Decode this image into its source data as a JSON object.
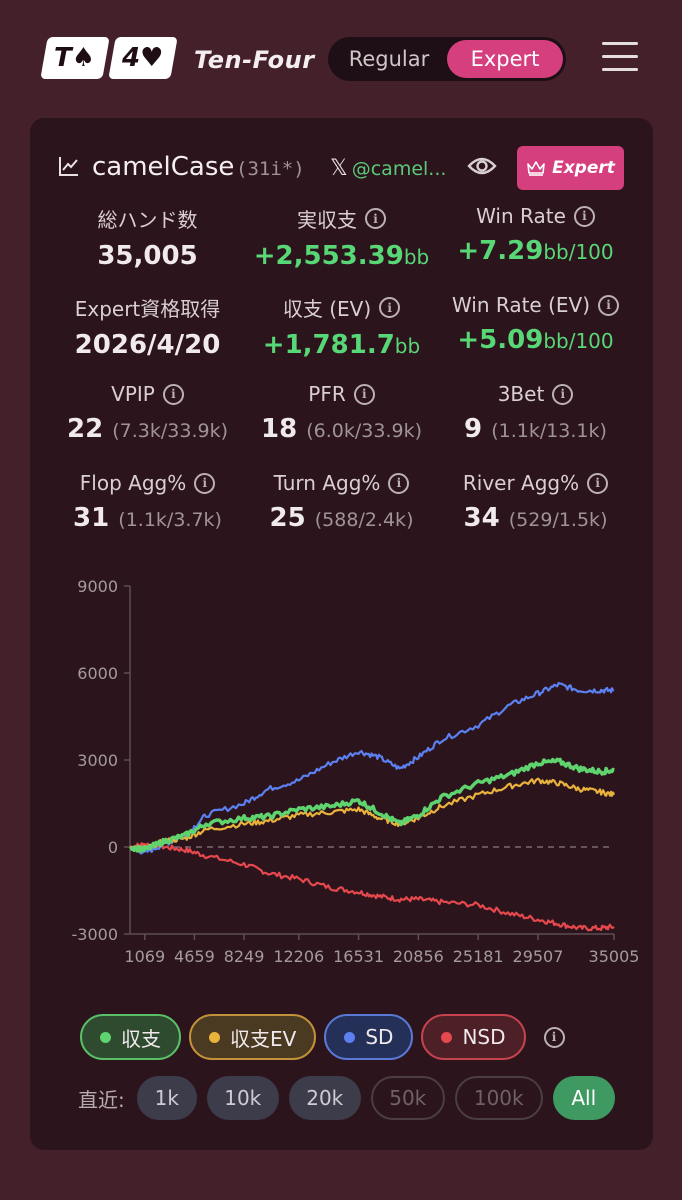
{
  "header": {
    "logo_cards": [
      "T♠",
      "4♥"
    ],
    "brand": "Ten-Four",
    "modes": [
      {
        "label": "Regular",
        "active": false
      },
      {
        "label": "Expert",
        "active": true
      }
    ]
  },
  "profile": {
    "username": "camelCase",
    "code": "(31i*)",
    "x_mark": "𝕏",
    "x_handle": "@camel...",
    "badge_label": "Expert"
  },
  "stats": {
    "total_hands": {
      "label": "総ハンド数",
      "value": "35,005"
    },
    "actual_profit": {
      "label": "実収支",
      "value": "+2,553.39",
      "unit": "bb"
    },
    "win_rate": {
      "label": "Win Rate",
      "value": "+7.29",
      "unit": "bb/100"
    },
    "expert_date": {
      "label": "Expert資格取得",
      "value": "2026/4/20"
    },
    "profit_ev": {
      "label": "収支 (EV)",
      "value": "+1,781.7",
      "unit": "bb"
    },
    "win_rate_ev": {
      "label": "Win Rate (EV)",
      "value": "+5.09",
      "unit": "bb/100"
    },
    "vpip": {
      "label": "VPIP",
      "value": "22",
      "detail": "(7.3k/33.9k)"
    },
    "pfr": {
      "label": "PFR",
      "value": "18",
      "detail": "(6.0k/33.9k)"
    },
    "threebet": {
      "label": "3Bet",
      "value": "9",
      "detail": "(1.1k/13.1k)"
    },
    "flop_agg": {
      "label": "Flop Agg%",
      "value": "31",
      "detail": "(1.1k/3.7k)"
    },
    "turn_agg": {
      "label": "Turn Agg%",
      "value": "25",
      "detail": "(588/2.4k)"
    },
    "river_agg": {
      "label": "River Agg%",
      "value": "34",
      "detail": "(529/1.5k)"
    }
  },
  "chart_data": {
    "type": "line",
    "x_ticks": [
      1069,
      4659,
      8249,
      12206,
      16531,
      20856,
      25181,
      29507,
      35005
    ],
    "y_ticks": [
      9000,
      6000,
      3000,
      0,
      -3000
    ],
    "xlim": [
      0,
      35005
    ],
    "ylim": [
      -3000,
      9000
    ],
    "grid": false,
    "series": [
      {
        "name": "SD",
        "color": "#5b80f0",
        "x": [
          0,
          1069,
          2500,
          4000,
          5500,
          8249,
          10000,
          12206,
          14500,
          16531,
          18000,
          19500,
          20856,
          22500,
          25181,
          27500,
          29507,
          31000,
          32500,
          34000,
          35005
        ],
        "y": [
          0,
          -200,
          100,
          400,
          1100,
          1500,
          2000,
          2300,
          2900,
          3300,
          3100,
          2700,
          3100,
          3700,
          4200,
          4900,
          5300,
          5600,
          5400,
          5400,
          5400
        ]
      },
      {
        "name": "収支",
        "color": "#5ed36e",
        "x": [
          0,
          1069,
          2500,
          4000,
          5500,
          8249,
          10000,
          12206,
          14500,
          16531,
          18000,
          19500,
          20856,
          22500,
          25181,
          27500,
          29507,
          31000,
          32500,
          34000,
          35005
        ],
        "y": [
          0,
          -100,
          200,
          400,
          800,
          1000,
          1050,
          1300,
          1400,
          1600,
          1200,
          800,
          1100,
          1700,
          2200,
          2500,
          2900,
          2950,
          2700,
          2600,
          2650
        ]
      },
      {
        "name": "収支EV",
        "color": "#e9b23c",
        "x": [
          0,
          1069,
          2500,
          4000,
          5500,
          8249,
          10000,
          12206,
          14500,
          16531,
          18000,
          19500,
          20856,
          22500,
          25181,
          27500,
          29507,
          31000,
          32500,
          34000,
          35005
        ],
        "y": [
          0,
          -50,
          200,
          300,
          600,
          800,
          900,
          1100,
          1200,
          1300,
          1000,
          800,
          1000,
          1400,
          1800,
          2100,
          2300,
          2200,
          2000,
          1900,
          1800
        ]
      },
      {
        "name": "NSD",
        "color": "#e5484d",
        "x": [
          0,
          1069,
          2500,
          4000,
          5500,
          8249,
          10000,
          12206,
          14500,
          16531,
          18000,
          19500,
          20856,
          22500,
          25181,
          27500,
          29507,
          31000,
          32500,
          34000,
          35005
        ],
        "y": [
          0,
          100,
          0,
          -100,
          -300,
          -600,
          -900,
          -1100,
          -1400,
          -1550,
          -1700,
          -1800,
          -1800,
          -1900,
          -2000,
          -2300,
          -2500,
          -2650,
          -2800,
          -2800,
          -2750
        ]
      }
    ]
  },
  "legend": [
    {
      "label": "収支",
      "color": "#5ed36e"
    },
    {
      "label": "収支EV",
      "color": "#e9b23c"
    },
    {
      "label": "SD",
      "color": "#5b80f0"
    },
    {
      "label": "NSD",
      "color": "#e5484d"
    }
  ],
  "recent": {
    "label": "直近:",
    "options": [
      {
        "label": "1k",
        "state": "enabled"
      },
      {
        "label": "10k",
        "state": "enabled"
      },
      {
        "label": "20k",
        "state": "enabled"
      },
      {
        "label": "50k",
        "state": "disabled"
      },
      {
        "label": "100k",
        "state": "disabled"
      },
      {
        "label": "All",
        "state": "active"
      }
    ]
  }
}
